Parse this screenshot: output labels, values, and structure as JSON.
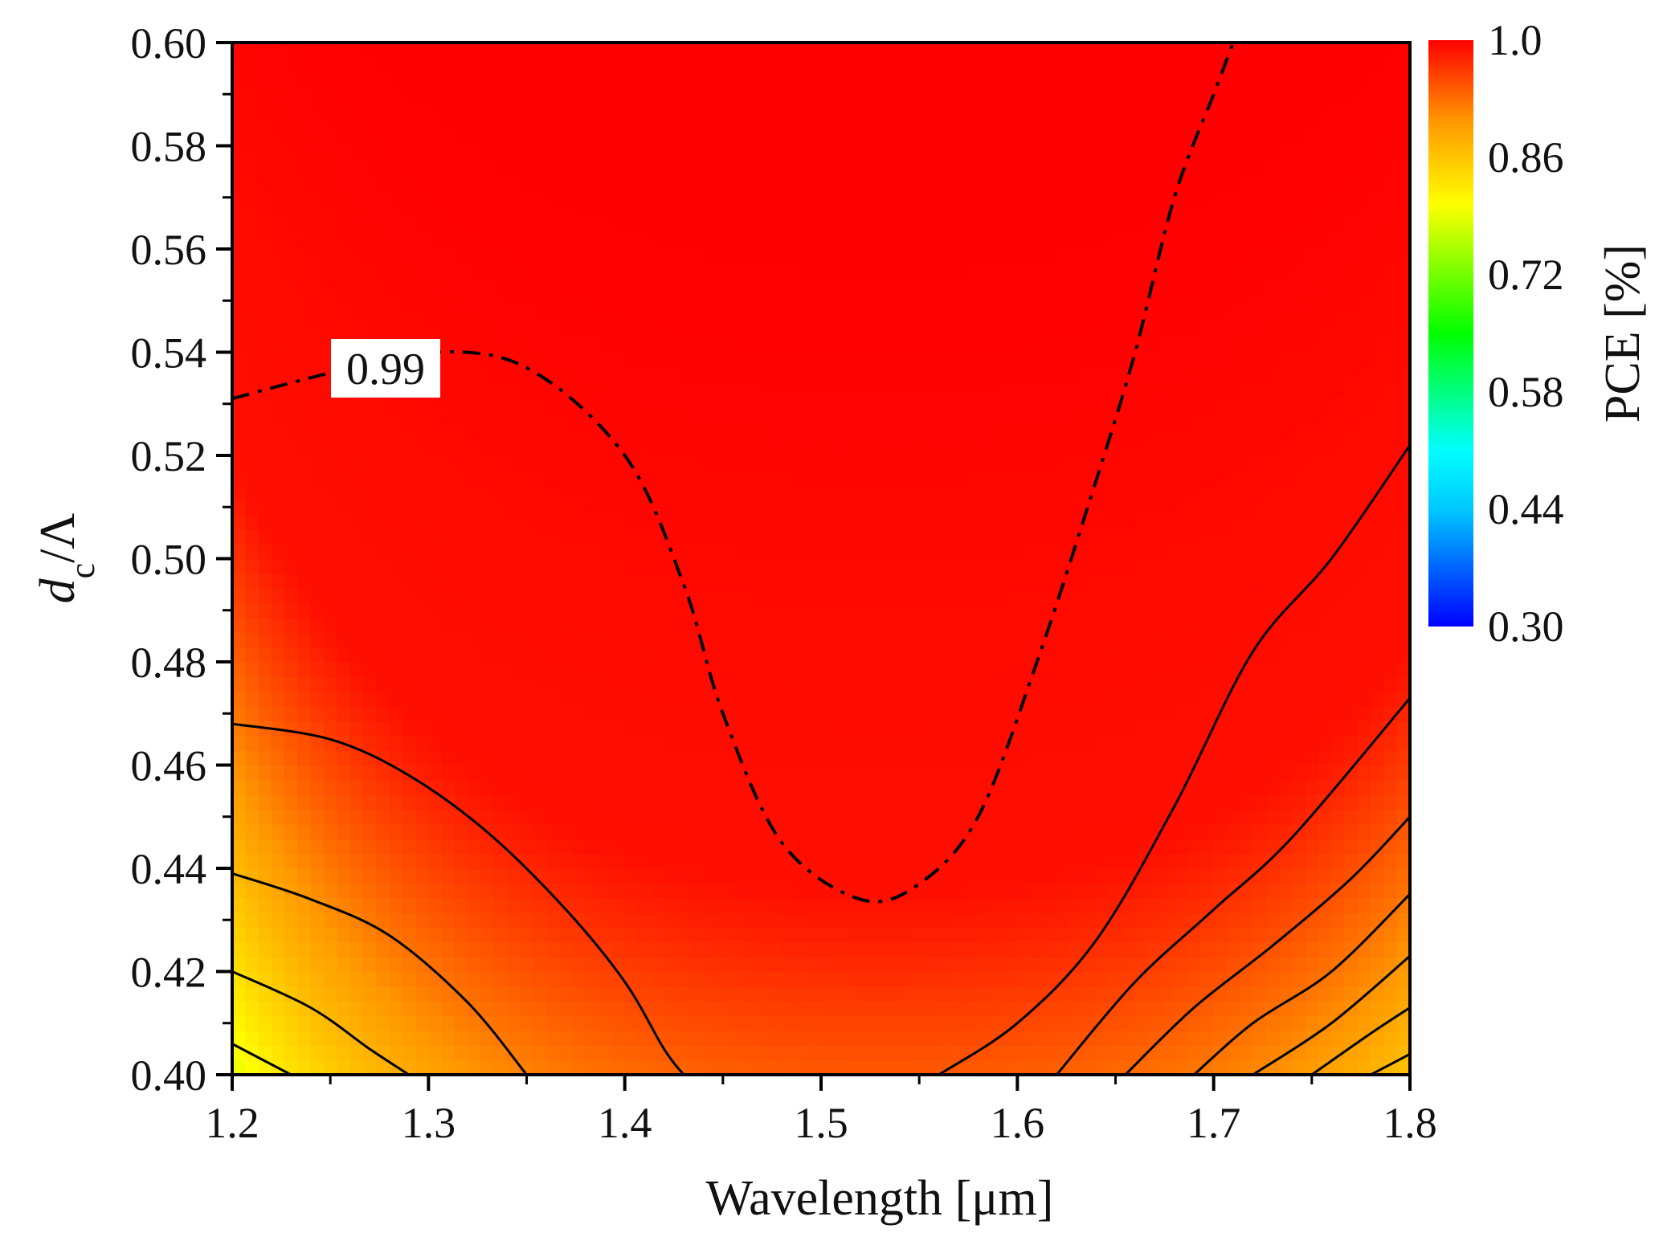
{
  "chart_data": {
    "type": "heatmap",
    "subtype": "filled-contour",
    "title": "",
    "xlabel": "Wavelength [μm]",
    "ylabel": {
      "main": "d",
      "sub": "c",
      "rest": "/Λ"
    },
    "xlim": [
      1.2,
      1.8
    ],
    "ylim": [
      0.4,
      0.6
    ],
    "x_ticks": [
      "1.2",
      "1.3",
      "1.4",
      "1.5",
      "1.6",
      "1.7",
      "1.8"
    ],
    "y_ticks": [
      "0.40",
      "0.42",
      "0.44",
      "0.46",
      "0.48",
      "0.50",
      "0.52",
      "0.54",
      "0.56",
      "0.58",
      "0.60"
    ],
    "colorbar": {
      "label": "PCE [%]",
      "range": [
        0.3,
        1.0
      ],
      "ticks": [
        "0.30",
        "0.44",
        "0.58",
        "0.72",
        "0.86",
        "1.0"
      ],
      "colormap": [
        "#0000ff",
        "#00c8ff",
        "#00ffff",
        "#00ff00",
        "#ffff00",
        "#ff9900",
        "#ff0000"
      ]
    },
    "contour_lines": [
      {
        "level": 0.99,
        "style": "dash-dot",
        "points": [
          [
            1.2,
            0.531
          ],
          [
            1.25,
            0.536
          ],
          [
            1.3,
            0.54
          ],
          [
            1.35,
            0.537
          ],
          [
            1.4,
            0.52
          ],
          [
            1.43,
            0.495
          ],
          [
            1.45,
            0.47
          ],
          [
            1.48,
            0.445
          ],
          [
            1.52,
            0.434
          ],
          [
            1.55,
            0.437
          ],
          [
            1.58,
            0.45
          ],
          [
            1.61,
            0.48
          ],
          [
            1.64,
            0.515
          ],
          [
            1.66,
            0.54
          ],
          [
            1.68,
            0.57
          ],
          [
            1.7,
            0.59
          ],
          [
            1.71,
            0.6
          ]
        ]
      },
      {
        "level": 0.93,
        "style": "solid",
        "points": [
          [
            1.2,
            0.468
          ],
          [
            1.25,
            0.465
          ],
          [
            1.29,
            0.458
          ],
          [
            1.33,
            0.447
          ],
          [
            1.37,
            0.432
          ],
          [
            1.4,
            0.418
          ],
          [
            1.42,
            0.405
          ],
          [
            1.43,
            0.4
          ]
        ]
      },
      {
        "level": 0.86,
        "style": "solid",
        "points": [
          [
            1.2,
            0.439
          ],
          [
            1.24,
            0.434
          ],
          [
            1.28,
            0.427
          ],
          [
            1.32,
            0.414
          ],
          [
            1.35,
            0.4
          ]
        ]
      },
      {
        "level": 0.79,
        "style": "solid",
        "points": [
          [
            1.2,
            0.42
          ],
          [
            1.24,
            0.413
          ],
          [
            1.27,
            0.405
          ],
          [
            1.29,
            0.4
          ]
        ]
      },
      {
        "level": 0.72,
        "style": "solid",
        "points": [
          [
            1.2,
            0.406
          ],
          [
            1.23,
            0.4
          ]
        ]
      },
      {
        "level": 0.93,
        "style": "solid",
        "points": [
          [
            1.56,
            0.4
          ],
          [
            1.6,
            0.41
          ],
          [
            1.64,
            0.426
          ],
          [
            1.68,
            0.452
          ],
          [
            1.72,
            0.482
          ],
          [
            1.76,
            0.5
          ],
          [
            1.8,
            0.522
          ]
        ]
      },
      {
        "level": 0.86,
        "style": "solid",
        "points": [
          [
            1.62,
            0.4
          ],
          [
            1.66,
            0.418
          ],
          [
            1.7,
            0.432
          ],
          [
            1.74,
            0.446
          ],
          [
            1.8,
            0.473
          ]
        ]
      },
      {
        "level": 0.79,
        "style": "solid",
        "points": [
          [
            1.655,
            0.4
          ],
          [
            1.69,
            0.413
          ],
          [
            1.73,
            0.425
          ],
          [
            1.77,
            0.438
          ],
          [
            1.8,
            0.45
          ]
        ]
      },
      {
        "level": 0.72,
        "style": "solid",
        "points": [
          [
            1.69,
            0.4
          ],
          [
            1.72,
            0.41
          ],
          [
            1.76,
            0.42
          ],
          [
            1.8,
            0.435
          ]
        ]
      },
      {
        "level": 0.65,
        "style": "solid",
        "points": [
          [
            1.72,
            0.4
          ],
          [
            1.76,
            0.41
          ],
          [
            1.8,
            0.423
          ]
        ]
      },
      {
        "level": 0.58,
        "style": "solid",
        "points": [
          [
            1.75,
            0.4
          ],
          [
            1.78,
            0.408
          ],
          [
            1.8,
            0.413
          ]
        ]
      },
      {
        "level": 0.51,
        "style": "solid",
        "points": [
          [
            1.78,
            0.4
          ],
          [
            1.8,
            0.404
          ]
        ]
      }
    ],
    "annotations": [
      {
        "text": "0.99",
        "x": 1.275,
        "y": 0.535
      }
    ]
  }
}
